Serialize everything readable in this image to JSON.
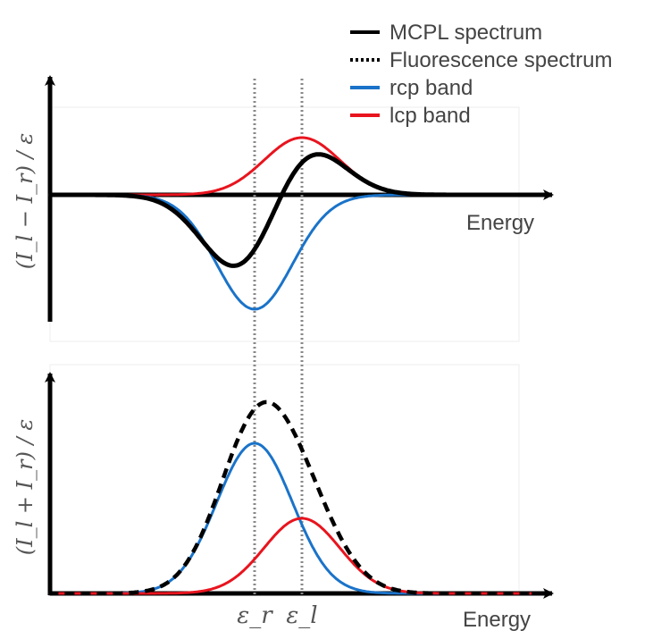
{
  "legend": {
    "placement": "top-right",
    "items": [
      {
        "label": "MCPL spectrum",
        "style": "solid",
        "color": "#000000"
      },
      {
        "label": "Fluorescence spectrum",
        "style": "dotted",
        "color": "#000000"
      },
      {
        "label": "rcp band",
        "style": "solid",
        "color": "#1a73c9"
      },
      {
        "label": "lcp band",
        "style": "solid",
        "color": "#e8141e"
      }
    ]
  },
  "top_panel": {
    "ylabel": "(I_l − I_r) / ε",
    "xlabel": "Energy"
  },
  "bottom_panel": {
    "ylabel": "(I_l + I_r) / ε",
    "xlabel": "Energy"
  },
  "markers": {
    "eps_r": "ε_r",
    "eps_l": "ε_l"
  },
  "colors": {
    "rcp": "#1a73c9",
    "lcp": "#e8141e",
    "mcpl": "#000000",
    "axis": "#000000",
    "marker_line": "#888888"
  },
  "chart_data": {
    "type": "line",
    "x": {
      "eps_r": 0.0,
      "eps_l": 0.2
    },
    "series": [
      {
        "name": "rcp band",
        "center": 0.0,
        "amplitude_top": -1.0,
        "amplitude_bottom": 1.0,
        "width": 0.16
      },
      {
        "name": "lcp band",
        "center": 0.2,
        "amplitude_top": 0.5,
        "amplitude_bottom": 0.5,
        "width": 0.16
      },
      {
        "name": "MCPL spectrum",
        "definition": "lcp band minus rcp band"
      },
      {
        "name": "Fluorescence spectrum",
        "definition": "lcp band plus rcp band"
      }
    ]
  }
}
